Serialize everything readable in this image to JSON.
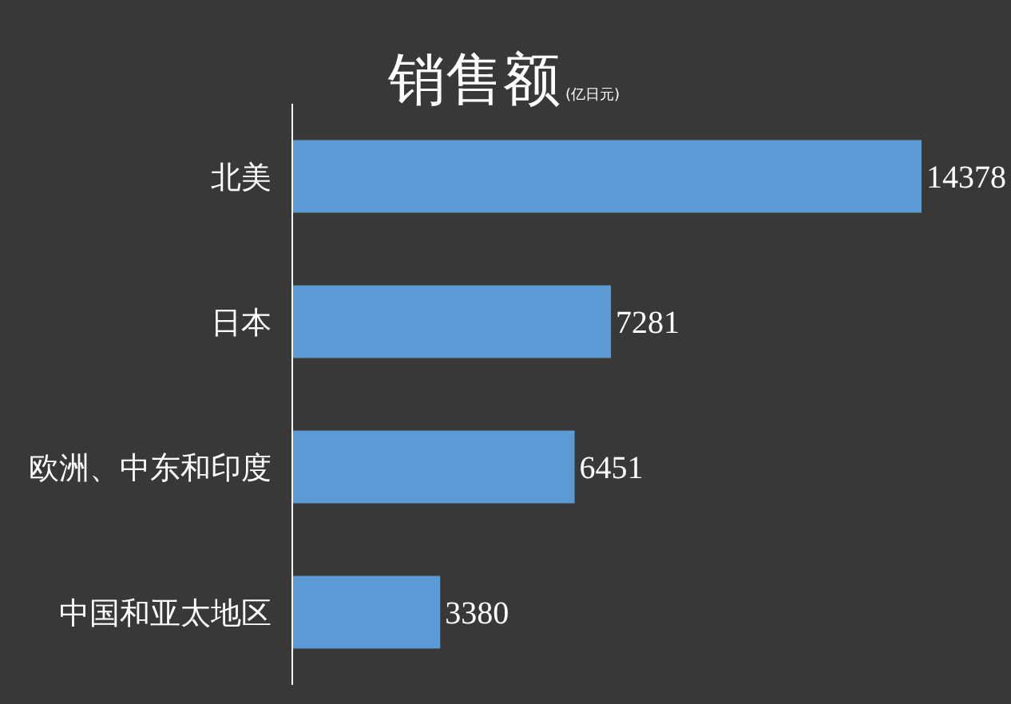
{
  "chart_data": {
    "type": "bar",
    "orientation": "horizontal",
    "title": "销售额",
    "subtitle": "(亿日元)",
    "categories": [
      "北美",
      "日本",
      "欧洲、中东和印度",
      "中国和亚太地区"
    ],
    "values": [
      14378,
      7281,
      6451,
      3380
    ],
    "color": "#5b9bd5",
    "data_labels": true
  }
}
